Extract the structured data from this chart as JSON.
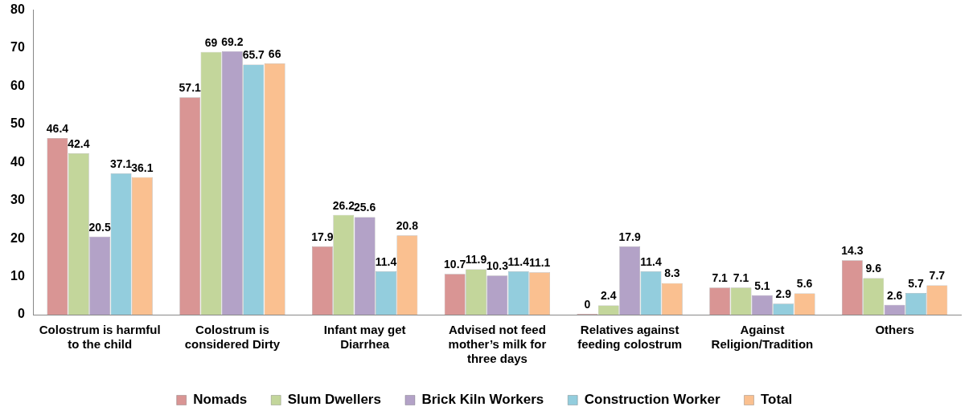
{
  "chart_data": {
    "type": "bar",
    "categories": [
      "Colostrum is harmful to the child",
      "Colostrum is considered Dirty",
      "Infant may get Diarrhea",
      "Advised not feed mother’s milk for three days",
      "Relatives against feeding colostrum",
      "Against Religion/Tradition",
      "Others"
    ],
    "series": [
      {
        "name": "Nomads",
        "color": "#d99594",
        "values": [
          46.4,
          57.1,
          17.9,
          10.7,
          0,
          7.1,
          14.3
        ]
      },
      {
        "name": "Slum Dwellers",
        "color": "#c3d69b",
        "values": [
          42.4,
          69,
          26.2,
          11.9,
          2.4,
          7.1,
          9.6
        ]
      },
      {
        "name": "Brick Kiln Workers",
        "color": "#b3a2c7",
        "values": [
          20.5,
          69.2,
          25.6,
          10.3,
          17.9,
          5.1,
          2.6
        ]
      },
      {
        "name": "Construction Worker",
        "color": "#93cddd",
        "values": [
          37.1,
          65.7,
          11.4,
          11.4,
          11.4,
          2.9,
          5.7
        ]
      },
      {
        "name": "Total",
        "color": "#fac090",
        "values": [
          36.1,
          66,
          20.8,
          11.1,
          8.3,
          5.6,
          7.7
        ]
      }
    ],
    "ylim": [
      0,
      80
    ],
    "yticks": [
      0,
      10,
      20,
      30,
      40,
      50,
      60,
      70,
      80
    ],
    "grid": false,
    "legend": "bottom",
    "data_labels": true
  }
}
